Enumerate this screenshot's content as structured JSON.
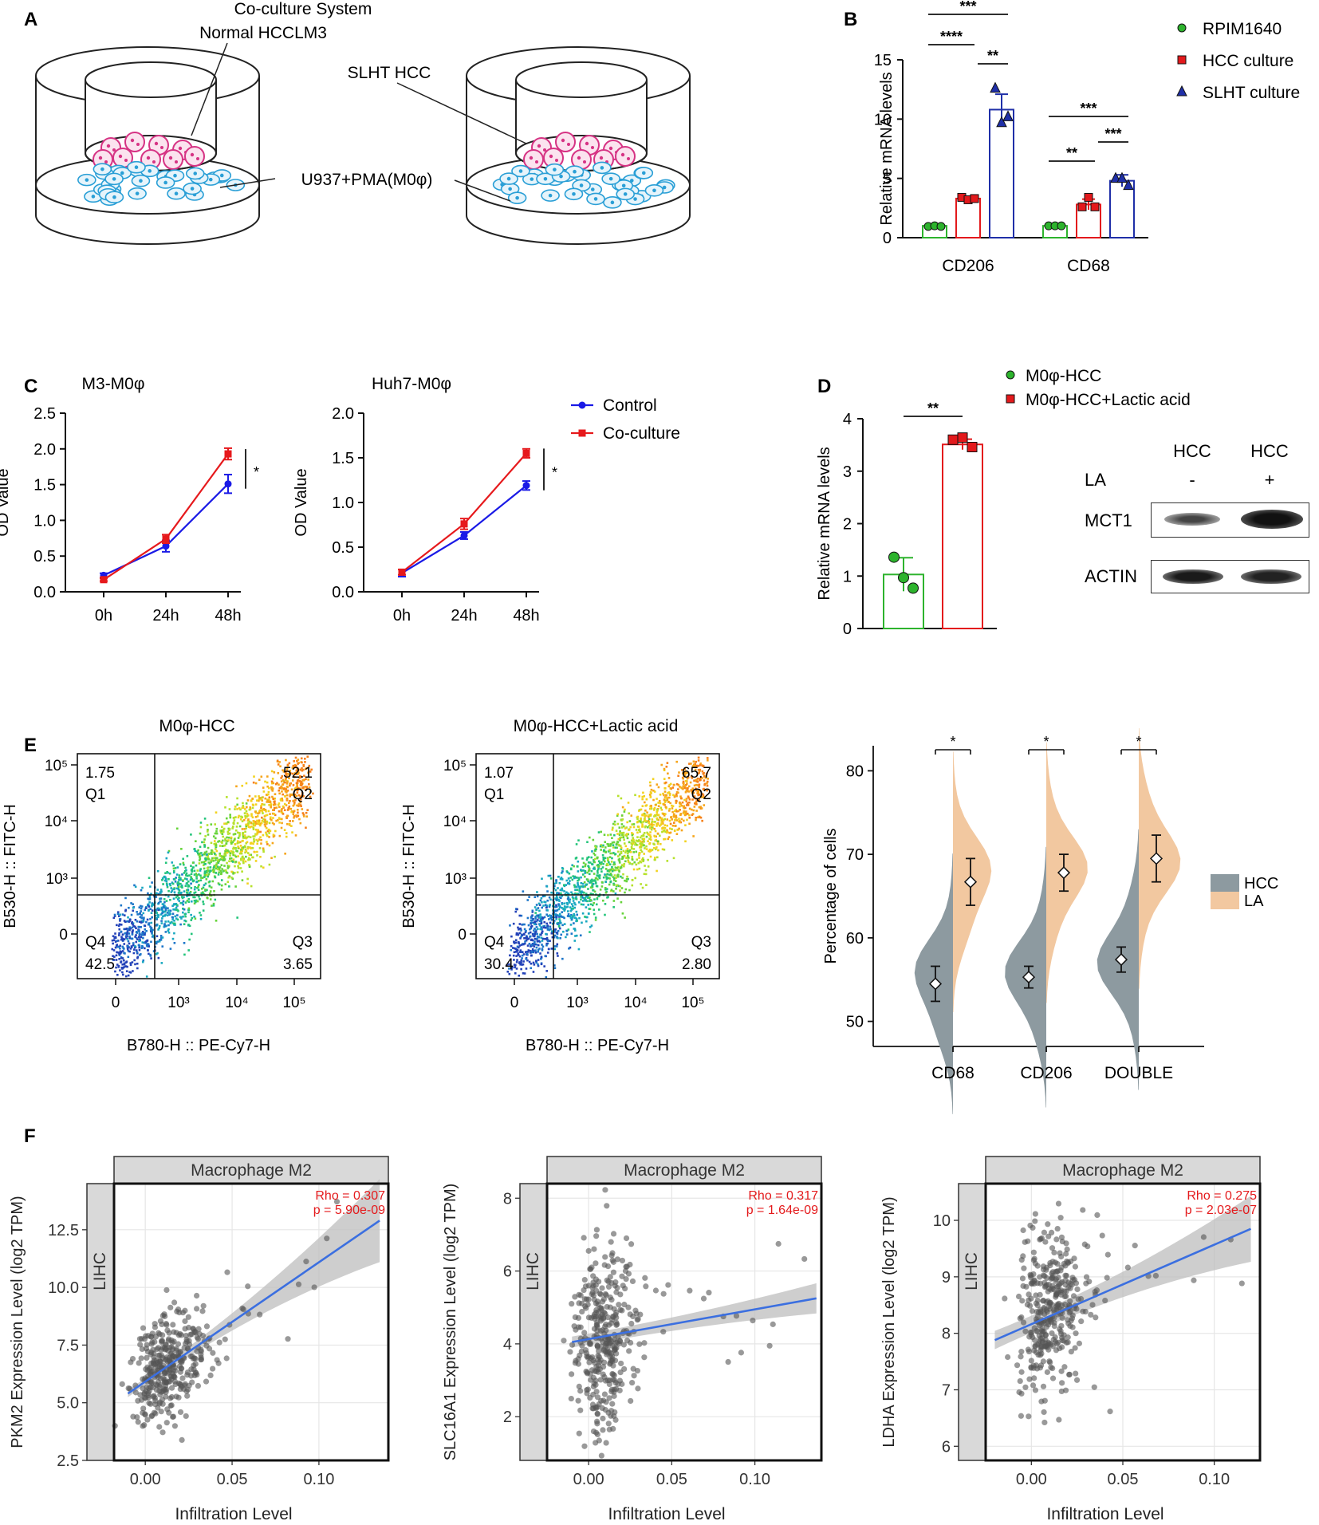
{
  "panels": {
    "A": {
      "letter": "A",
      "title": "Co-culture System",
      "labels": {
        "normal": "Normal HCCLM3",
        "slht": "SLHT HCC",
        "u937": "U937+PMA(M0φ)"
      }
    },
    "B": {
      "letter": "B",
      "chart_data": {
        "type": "bar",
        "ylabel": "Relative mRNA levels",
        "ylim": [
          0,
          15
        ],
        "yticks": [
          0,
          5,
          10,
          15
        ],
        "categories": [
          "CD206",
          "CD68"
        ],
        "series": [
          {
            "name": "RPIM1640",
            "color": "#2db32d",
            "values": [
              1.0,
              1.0
            ],
            "err": [
              0.1,
              0.05
            ],
            "points": [
              [
                0.95,
                1.0,
                0.95
              ],
              [
                1.0,
                1.0,
                1.0
              ]
            ]
          },
          {
            "name": "HCC culture",
            "color": "#e3191c",
            "values": [
              3.3,
              2.8
            ],
            "err": [
              0.15,
              0.45
            ],
            "points": [
              [
                3.4,
                3.2,
                3.3
              ],
              [
                2.6,
                3.4,
                2.6
              ]
            ]
          },
          {
            "name": "SLHT culture",
            "color": "#1f2fa8",
            "values": [
              10.8,
              4.8
            ],
            "err": [
              1.3,
              0.5
            ],
            "points": [
              [
                12.6,
                9.7,
                10.2
              ],
              [
                5.0,
                5.0,
                4.4
              ]
            ]
          }
        ],
        "significance": [
          "***",
          "****",
          "**",
          "***",
          "**",
          "***"
        ]
      }
    },
    "C": {
      "letter": "C",
      "chart_data": [
        {
          "type": "line",
          "title": "M3-M0φ",
          "ylabel": "OD Value",
          "x": [
            "0h",
            "24h",
            "48h"
          ],
          "ylim": [
            0,
            2.5
          ],
          "yticks": [
            "0.0",
            "0.5",
            "1.0",
            "1.5",
            "2.0",
            "2.5"
          ],
          "series": [
            {
              "name": "Control",
              "color": "#1a1ae6",
              "values": [
                0.23,
                0.64,
                1.51
              ],
              "err": [
                0.03,
                0.08,
                0.13
              ]
            },
            {
              "name": "Co-culture",
              "color": "#e6191c",
              "values": [
                0.17,
                0.74,
                1.93
              ],
              "err": [
                0.02,
                0.06,
                0.08
              ]
            }
          ],
          "sig": "*"
        },
        {
          "type": "line",
          "title": "Huh7-M0φ",
          "ylabel": "OD Value",
          "x": [
            "0h",
            "24h",
            "48h"
          ],
          "ylim": [
            0,
            2.0
          ],
          "yticks": [
            "0.0",
            "0.5",
            "1.0",
            "1.5",
            "2.0"
          ],
          "series": [
            {
              "name": "Control",
              "color": "#1a1ae6",
              "values": [
                0.21,
                0.63,
                1.19
              ],
              "err": [
                0.04,
                0.04,
                0.05
              ]
            },
            {
              "name": "Co-culture",
              "color": "#e6191c",
              "values": [
                0.22,
                0.76,
                1.55
              ],
              "err": [
                0.03,
                0.06,
                0.05
              ]
            }
          ],
          "sig": "*"
        }
      ],
      "legend": [
        "Control",
        "Co-culture"
      ]
    },
    "D": {
      "letter": "D",
      "chart_data": {
        "type": "bar",
        "ylabel": "Relative mRNA levels",
        "ylim": [
          0,
          4
        ],
        "yticks": [
          "0",
          "1",
          "2",
          "3",
          "4"
        ],
        "series": [
          {
            "name": "M0φ-HCC",
            "color": "#2db32d",
            "value": 1.03,
            "err": 0.32,
            "points": [
              1.36,
              0.97,
              0.77
            ]
          },
          {
            "name": "M0φ-HCC+Lactic acid",
            "color": "#e3191c",
            "value": 3.51,
            "err": 0.1,
            "points": [
              3.6,
              3.64,
              3.46
            ]
          }
        ],
        "sig": "**"
      },
      "blot": {
        "col_headers": [
          "HCC",
          "HCC"
        ],
        "la_label": "LA",
        "la_values": [
          "-",
          "+"
        ],
        "rows": [
          "MCT1",
          "ACTIN"
        ]
      }
    },
    "E": {
      "letter": "E",
      "flow": [
        {
          "title": "M0φ-HCC",
          "xlabel": "B780-H :: PE-Cy7-H",
          "ylabel": "B530-H :: FITC-H",
          "quadrants": {
            "Q1": "1.75",
            "Q2": "52.1",
            "Q3": "3.65",
            "Q4": "42.5"
          },
          "qlabels": [
            "Q1",
            "Q2",
            "Q3",
            "Q4"
          ]
        },
        {
          "title": "M0φ-HCC+Lactic acid",
          "xlabel": "B780-H :: PE-Cy7-H",
          "ylabel": "B530-H :: FITC-H",
          "quadrants": {
            "Q1": "1.07",
            "Q2": "65.7",
            "Q3": "2.80",
            "Q4": "30.4"
          },
          "qlabels": [
            "Q1",
            "Q2",
            "Q3",
            "Q4"
          ]
        }
      ],
      "axis_ticks": {
        "x": [
          "0",
          "10³",
          "10⁴",
          "10⁵"
        ],
        "y": [
          "0",
          "10³",
          "10⁴",
          "10⁵"
        ]
      },
      "violin": {
        "type": "violin",
        "ylabel": "Percentage of cells",
        "ylim": [
          47,
          83
        ],
        "yticks": [
          "50",
          "60",
          "70",
          "80"
        ],
        "categories": [
          "CD68",
          "CD206",
          "DOUBLE"
        ],
        "groups": [
          {
            "name": "HCC",
            "color": "#8d9aa0",
            "means": [
              54.5,
              55.3,
              57.4
            ],
            "err": [
              2.1,
              1.3,
              1.5
            ]
          },
          {
            "name": "LA",
            "color": "#f2c8a0",
            "means": [
              66.7,
              67.8,
              69.5
            ],
            "err": [
              2.8,
              2.2,
              2.8
            ]
          }
        ],
        "sig": [
          "*",
          "*",
          "*"
        ]
      }
    },
    "F": {
      "letter": "F",
      "chart_data": [
        {
          "type": "scatter",
          "strip": "Macrophage M2",
          "side": "LIHC",
          "ylabel": "PKM2 Expression Level (log2 TPM)",
          "xlabel": "Infiltration Level",
          "xticks": [
            "0.00",
            "0.05",
            "0.10"
          ],
          "yticks": [
            "2.5",
            "5.0",
            "7.5",
            "10.0",
            "12.5"
          ],
          "xlim": [
            -0.018,
            0.14
          ],
          "ylim": [
            2.5,
            14.5
          ],
          "rho": "Rho = 0.307",
          "p": "p = 5.90e-09",
          "fit": [
            [
              -0.01,
              5.4
            ],
            [
              0.135,
              12.9
            ]
          ]
        },
        {
          "type": "scatter",
          "strip": "Macrophage M2",
          "side": "LIHC",
          "ylabel": "SLC16A1 Expression Level (log2 TPM)",
          "xlabel": "Infiltration Level",
          "xticks": [
            "0.00",
            "0.05",
            "0.10"
          ],
          "yticks": [
            "2",
            "4",
            "6",
            "8"
          ],
          "xlim": [
            -0.025,
            0.14
          ],
          "ylim": [
            0.8,
            8.4
          ],
          "rho": "Rho = 0.317",
          "p": "p = 1.64e-09",
          "fit": [
            [
              -0.01,
              4.05
            ],
            [
              0.137,
              5.25
            ]
          ]
        },
        {
          "type": "scatter",
          "strip": "Macrophage M2",
          "side": "LIHC",
          "ylabel": "LDHA Expression Level (log2 TPM)",
          "xlabel": "Infiltration Level",
          "xticks": [
            "0.00",
            "0.05",
            "0.10"
          ],
          "yticks": [
            "6",
            "7",
            "8",
            "9",
            "10"
          ],
          "xlim": [
            -0.025,
            0.125
          ],
          "ylim": [
            5.75,
            10.65
          ],
          "rho": "Rho = 0.275",
          "p": "p = 2.03e-07",
          "fit": [
            [
              -0.02,
              7.88
            ],
            [
              0.12,
              9.85
            ]
          ]
        }
      ]
    }
  }
}
